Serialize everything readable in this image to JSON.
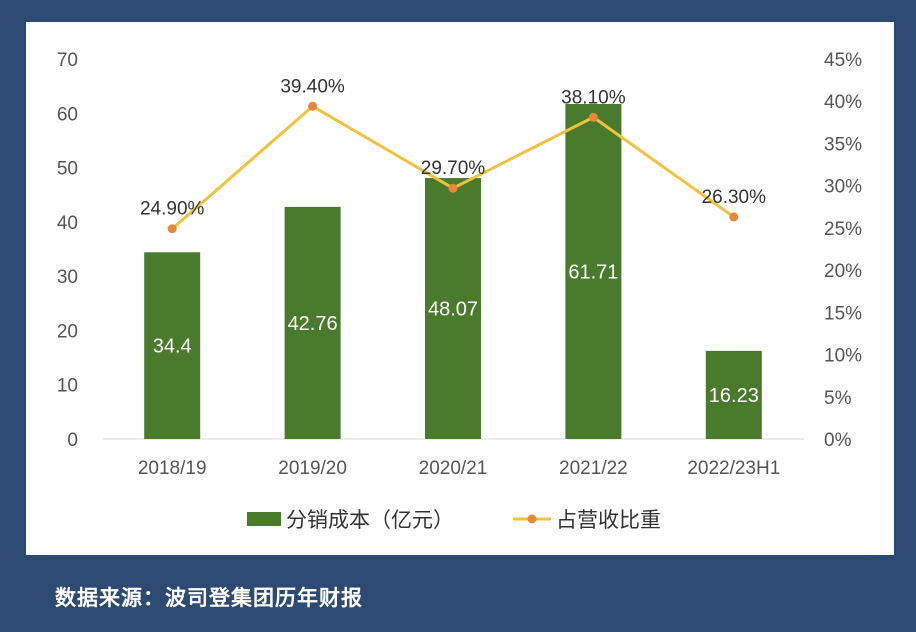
{
  "chart_data": {
    "type": "bar",
    "categories": [
      "2018/19",
      "2019/20",
      "2020/21",
      "2021/22",
      "2022/23H1"
    ],
    "series": [
      {
        "name": "分销成本（亿元）",
        "type": "bar",
        "axis": "left",
        "color": "#4a7a2c",
        "values": [
          34.4,
          42.76,
          48.07,
          61.71,
          16.23
        ],
        "labels": [
          "34.4",
          "42.76",
          "48.07",
          "61.71",
          "16.23"
        ]
      },
      {
        "name": "占营收比重",
        "type": "line",
        "axis": "right",
        "color": "#f2c23d",
        "marker_color": "#e8873a",
        "values": [
          24.9,
          39.4,
          29.7,
          38.1,
          26.3
        ],
        "labels": [
          "24.90%",
          "39.40%",
          "29.70%",
          "38.10%",
          "26.30%"
        ]
      }
    ],
    "y_left": {
      "lim": [
        0,
        70
      ],
      "ticks": [
        "0",
        "10",
        "20",
        "30",
        "40",
        "50",
        "60",
        "70"
      ]
    },
    "y_right": {
      "lim": [
        0,
        45
      ],
      "ticks": [
        "0%",
        "5%",
        "10%",
        "15%",
        "20%",
        "25%",
        "30%",
        "35%",
        "40%",
        "45%"
      ]
    },
    "legend": "bottom",
    "grid": false
  },
  "source": "数据来源：波司登集团历年财报",
  "colors": {
    "background": "#2d4a72",
    "panel": "#ffffff"
  }
}
